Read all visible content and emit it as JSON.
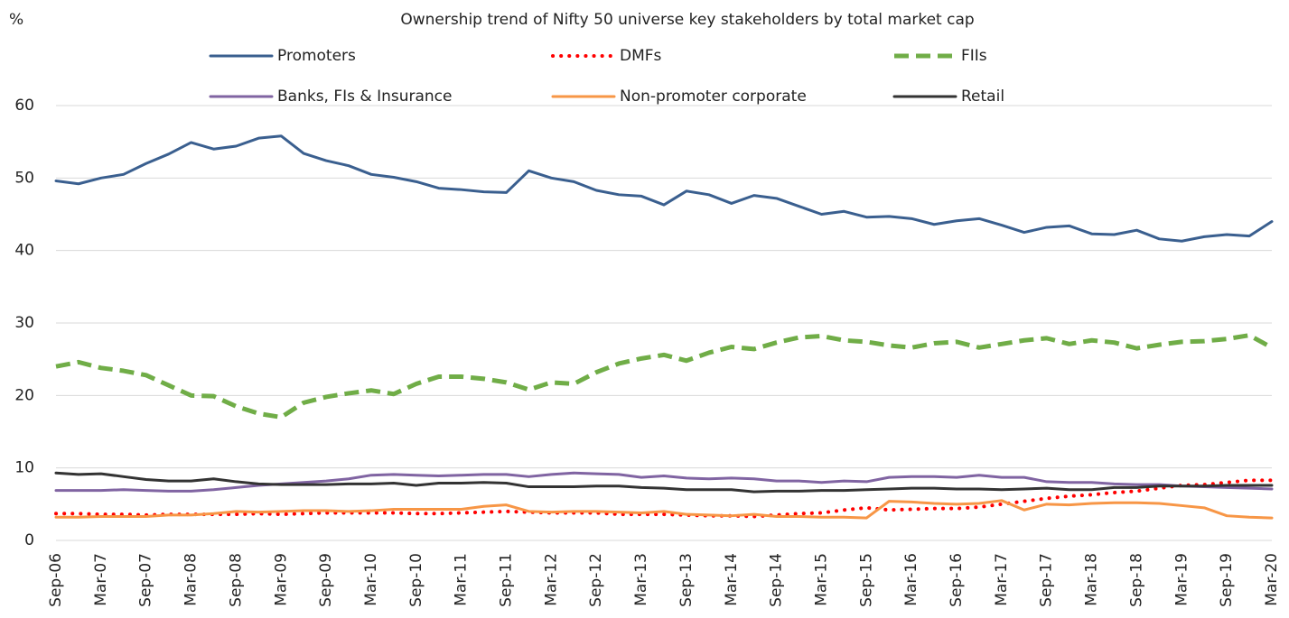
{
  "chart_data": {
    "type": "line",
    "title": "Ownership trend of Nifty 50 universe key stakeholders by total market cap",
    "y_label": "%",
    "categories": [
      "Sep-06",
      null,
      "Mar-07",
      null,
      "Sep-07",
      null,
      "Mar-08",
      null,
      "Sep-08",
      null,
      "Mar-09",
      null,
      "Sep-09",
      null,
      "Mar-10",
      null,
      "Sep-10",
      null,
      "Mar-11",
      null,
      "Sep-11",
      null,
      "Mar-12",
      null,
      "Sep-12",
      null,
      "Mar-13",
      null,
      "Sep-13",
      null,
      "Mar-14",
      null,
      "Sep-14",
      null,
      "Mar-15",
      null,
      "Sep-15",
      null,
      "Mar-16",
      null,
      "Sep-16",
      null,
      "Mar-17",
      null,
      "Sep-17",
      null,
      "Mar-18",
      null,
      "Sep-18",
      null,
      "Mar-19",
      null,
      "Sep-19",
      null,
      "Mar-20"
    ],
    "series": [
      {
        "name": "Promoters",
        "color": "#3a5f8f",
        "style": "solid",
        "values": [
          49.6,
          49.2,
          50.0,
          50.5,
          52.0,
          53.3,
          54.9,
          54.0,
          54.4,
          55.5,
          55.8,
          53.4,
          52.4,
          51.7,
          50.5,
          50.1,
          49.5,
          48.6,
          48.4,
          48.1,
          48.0,
          51.0,
          50.0,
          49.5,
          48.3,
          47.7,
          47.5,
          46.3,
          48.2,
          47.7,
          46.5,
          47.6,
          47.2,
          46.1,
          45.0,
          45.4,
          44.6,
          44.7,
          44.4,
          43.6,
          44.1,
          44.4,
          43.5,
          42.5,
          43.2,
          43.4,
          42.3,
          42.2,
          42.8,
          41.6,
          41.3,
          41.9,
          42.2,
          42.0,
          44.0
        ]
      },
      {
        "name": "DMFs",
        "color": "#ff0000",
        "style": "dotted",
        "values": [
          3.7,
          3.7,
          3.6,
          3.6,
          3.5,
          3.6,
          3.6,
          3.6,
          3.6,
          3.7,
          3.6,
          3.7,
          3.8,
          3.8,
          3.8,
          3.8,
          3.7,
          3.7,
          3.8,
          3.9,
          4.0,
          3.9,
          3.8,
          3.8,
          3.8,
          3.6,
          3.6,
          3.6,
          3.5,
          3.4,
          3.4,
          3.3,
          3.5,
          3.7,
          3.8,
          4.2,
          4.5,
          4.2,
          4.3,
          4.4,
          4.4,
          4.6,
          5.0,
          5.4,
          5.8,
          6.1,
          6.3,
          6.6,
          6.8,
          7.2,
          7.6,
          7.7,
          8.0,
          8.3,
          8.3
        ]
      },
      {
        "name": "FIIs",
        "color": "#70ad47",
        "style": "dashed",
        "values": [
          24.0,
          24.6,
          23.8,
          23.4,
          22.8,
          21.4,
          20.0,
          19.9,
          18.5,
          17.5,
          17.0,
          19.0,
          19.8,
          20.3,
          20.7,
          20.2,
          21.6,
          22.6,
          22.6,
          22.3,
          21.8,
          20.8,
          21.8,
          21.6,
          23.2,
          24.4,
          25.1,
          25.6,
          24.8,
          25.9,
          26.7,
          26.4,
          27.3,
          28.0,
          28.2,
          27.6,
          27.4,
          26.9,
          26.6,
          27.2,
          27.4,
          26.6,
          27.1,
          27.6,
          27.9,
          27.1,
          27.6,
          27.3,
          26.5,
          27.0,
          27.4,
          27.5,
          27.8,
          28.3,
          26.6
        ]
      },
      {
        "name": "Banks, FIs & Insurance",
        "color": "#8064a2",
        "style": "solid",
        "values": [
          6.9,
          6.9,
          6.9,
          7.0,
          6.9,
          6.8,
          6.8,
          7.0,
          7.3,
          7.6,
          7.8,
          8.0,
          8.2,
          8.5,
          9.0,
          9.1,
          9.0,
          8.9,
          9.0,
          9.1,
          9.1,
          8.8,
          9.1,
          9.3,
          9.2,
          9.1,
          8.7,
          8.9,
          8.6,
          8.5,
          8.6,
          8.5,
          8.2,
          8.2,
          8.0,
          8.2,
          8.1,
          8.7,
          8.8,
          8.8,
          8.7,
          9.0,
          8.7,
          8.7,
          8.1,
          8.0,
          8.0,
          7.8,
          7.7,
          7.7,
          7.5,
          7.4,
          7.3,
          7.2,
          7.1
        ]
      },
      {
        "name": "Non-promoter corporate",
        "color": "#f79646",
        "style": "solid",
        "values": [
          3.2,
          3.2,
          3.3,
          3.3,
          3.3,
          3.5,
          3.5,
          3.7,
          4.0,
          3.9,
          4.0,
          4.1,
          4.1,
          4.0,
          4.1,
          4.3,
          4.3,
          4.3,
          4.3,
          4.7,
          4.9,
          4.0,
          3.9,
          4.0,
          4.0,
          3.9,
          3.8,
          4.0,
          3.6,
          3.5,
          3.4,
          3.6,
          3.3,
          3.3,
          3.2,
          3.2,
          3.1,
          5.4,
          5.3,
          5.1,
          5.0,
          5.1,
          5.5,
          4.2,
          5.0,
          4.9,
          5.1,
          5.2,
          5.2,
          5.1,
          4.8,
          4.5,
          3.4,
          3.2,
          3.1
        ]
      },
      {
        "name": "Retail",
        "color": "#333333",
        "style": "solid",
        "values": [
          9.3,
          9.1,
          9.2,
          8.8,
          8.4,
          8.2,
          8.2,
          8.5,
          8.1,
          7.8,
          7.7,
          7.7,
          7.7,
          7.8,
          7.8,
          7.9,
          7.6,
          7.9,
          7.9,
          8.0,
          7.9,
          7.4,
          7.4,
          7.4,
          7.5,
          7.5,
          7.3,
          7.2,
          7.0,
          7.0,
          7.0,
          6.7,
          6.8,
          6.8,
          6.9,
          6.9,
          7.0,
          7.1,
          7.2,
          7.2,
          7.1,
          7.1,
          7.0,
          7.1,
          7.2,
          7.0,
          7.0,
          7.3,
          7.3,
          7.5,
          7.5,
          7.5,
          7.6,
          7.6,
          7.6
        ]
      }
    ],
    "ylim": [
      0,
      60
    ],
    "yticks": [
      0,
      10,
      20,
      30,
      40,
      50,
      60
    ],
    "grid": true
  }
}
